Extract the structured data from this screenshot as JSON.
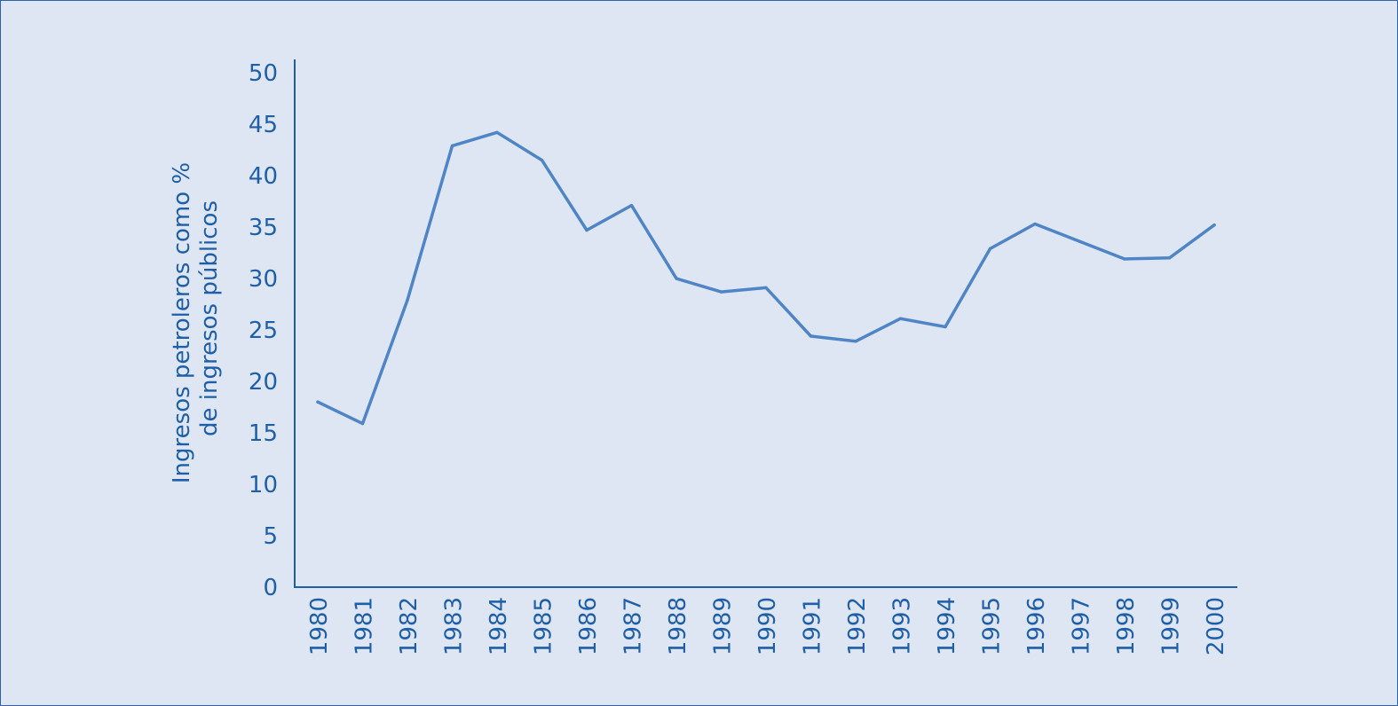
{
  "chart_data": {
    "type": "line",
    "title": "",
    "xlabel": "",
    "ylabel": [
      "Ingresos petroleros como %",
      "de ingresos públicos"
    ],
    "ylim": [
      0,
      50
    ],
    "yticks": [
      "0",
      "5",
      "10",
      "15",
      "20",
      "25",
      "30",
      "35",
      "40",
      "45",
      "50"
    ],
    "grid": false,
    "legend": "none",
    "colors": {
      "line": "#4f85c6",
      "axis": "#1f5fa8",
      "text": "#1f5fa8",
      "background": "#dfe6f3"
    },
    "categories": [
      "1980",
      "1981",
      "1982",
      "1983",
      "1984",
      "1985",
      "1986",
      "1987",
      "1988",
      "1989",
      "1990",
      "1991",
      "1992",
      "1993",
      "1994",
      "1995",
      "1996",
      "1997",
      "1998",
      "1999",
      "2000"
    ],
    "series": [
      {
        "values": [
          18.0,
          15.9,
          27.9,
          42.9,
          44.2,
          41.5,
          34.7,
          37.1,
          30.0,
          28.7,
          29.1,
          24.4,
          23.9,
          26.1,
          25.3,
          32.9,
          35.3,
          33.6,
          31.9,
          32.0,
          35.2
        ]
      }
    ]
  }
}
